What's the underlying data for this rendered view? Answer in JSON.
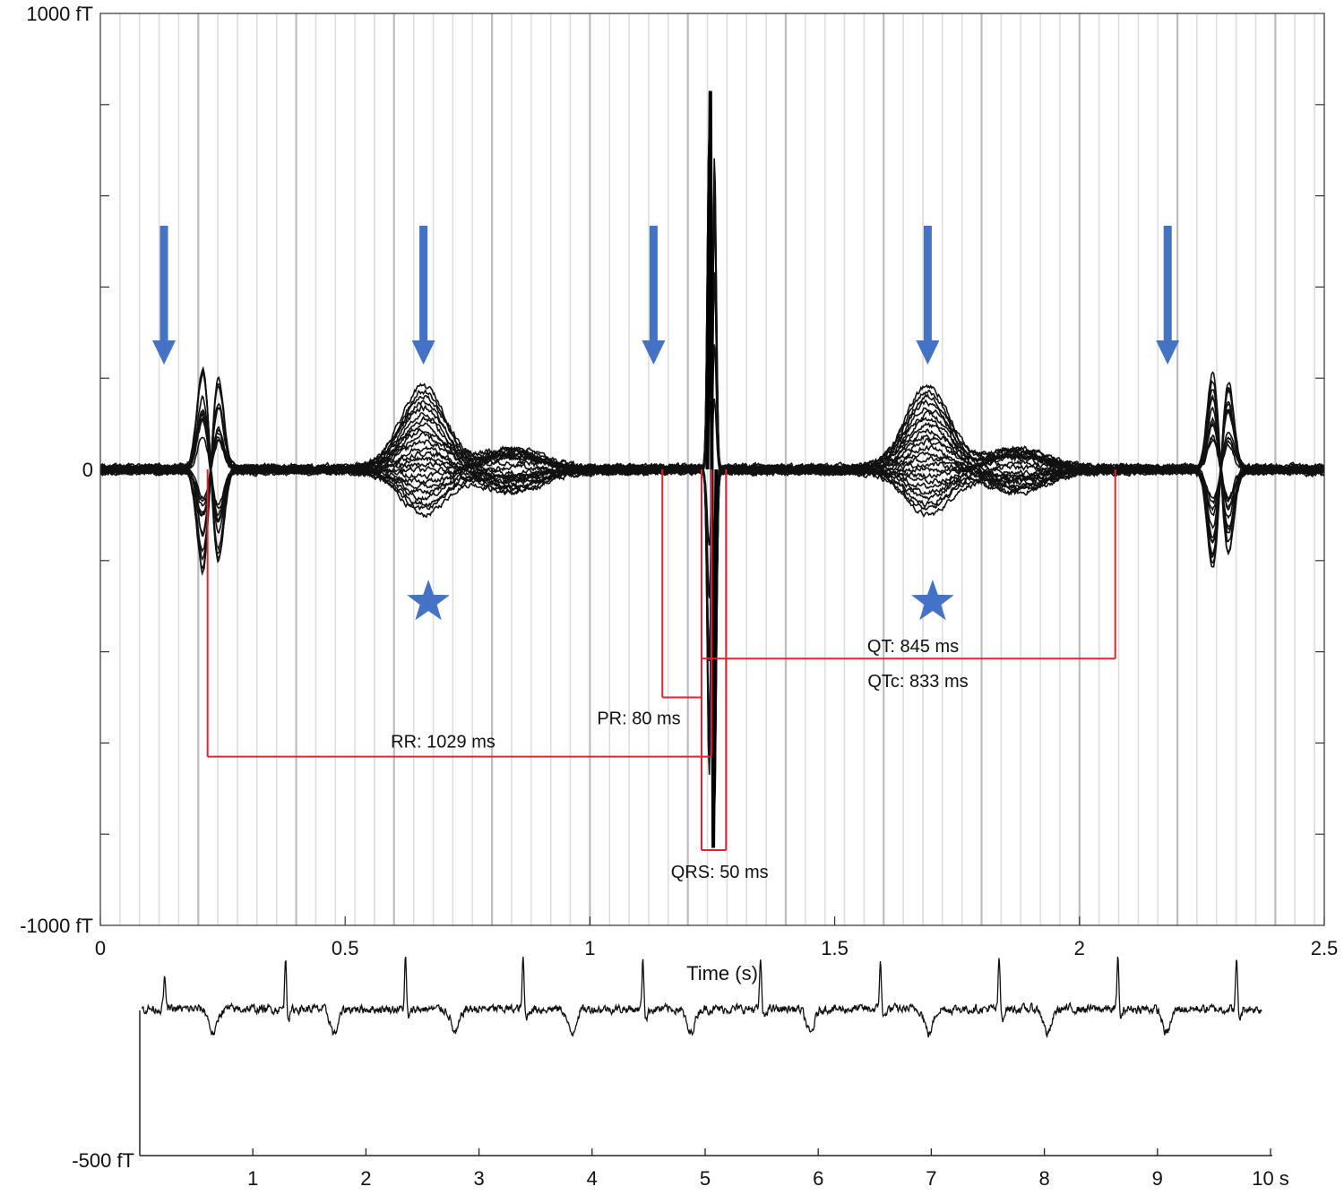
{
  "chart_data": [
    {
      "type": "line",
      "subject": "averaged-multichannel-overlay",
      "xlabel": "Time (s)",
      "x_range": [
        0,
        2.5
      ],
      "x_ticks": [
        {
          "value": 0,
          "label": "0"
        },
        {
          "value": 0.5,
          "label": "0.5"
        },
        {
          "value": 1,
          "label": "1"
        },
        {
          "value": 1.5,
          "label": "1.5"
        },
        {
          "value": 2,
          "label": "2"
        },
        {
          "value": 2.5,
          "label": "2.5"
        }
      ],
      "y_range": [
        -1000,
        1000
      ],
      "y_unit": "fT",
      "y_ticks": [
        {
          "value": 1000,
          "label": "1000 fT"
        },
        {
          "value": 0,
          "label": "0"
        },
        {
          "value": -1000,
          "label": "-1000 fT"
        }
      ],
      "y_minor_ticks": [
        800,
        600,
        400,
        200,
        -200,
        -400,
        -600,
        -800
      ],
      "grid": "vertical",
      "channel_count": 24,
      "r_peak": {
        "time": 1.248,
        "max": 830,
        "min": -830
      },
      "ectopic_complexes": [
        {
          "time": 0.222,
          "amplitude": 240
        },
        {
          "time": 2.285,
          "amplitude": 230
        }
      ],
      "t_waves": [
        {
          "time": 0.66,
          "max": 175,
          "min": -195
        },
        {
          "time": 1.69,
          "max": 185,
          "min": -210
        }
      ],
      "arrows": [
        0.13,
        0.66,
        1.13,
        1.69,
        2.18
      ],
      "arrow_color": "#4472c4",
      "stars": [
        0.67,
        1.7
      ],
      "star_color": "#4472c4",
      "intervals": [
        {
          "label": "RR: 1029 ms",
          "start": 0.219,
          "end": 1.248,
          "level": -630
        },
        {
          "label": "PR: 80 ms",
          "start": 1.148,
          "end": 1.228,
          "level": -500
        },
        {
          "label": "QT: 845 ms",
          "start": 1.228,
          "end": 2.073,
          "level": -415
        },
        {
          "label": "QTc: 833 ms"
        },
        {
          "label": "QRS: 50 ms",
          "start": 1.228,
          "end": 1.278,
          "level": -835
        }
      ],
      "annotation_color": "#e0242b"
    },
    {
      "type": "line",
      "subject": "single-channel-10s-trace",
      "x_range": [
        0,
        10
      ],
      "x_ticks": [
        {
          "value": 1,
          "label": "1"
        },
        {
          "value": 2,
          "label": "2"
        },
        {
          "value": 3,
          "label": "3"
        },
        {
          "value": 4,
          "label": "4"
        },
        {
          "value": 5,
          "label": "5"
        },
        {
          "value": 6,
          "label": "6"
        },
        {
          "value": 7,
          "label": "7"
        },
        {
          "value": 8,
          "label": "8"
        },
        {
          "value": 9,
          "label": "9"
        },
        {
          "value": 10,
          "label": "10 s"
        }
      ],
      "y_range": [
        -500,
        500
      ],
      "y_ticks": [
        {
          "value": -500,
          "label": "-500 fT"
        }
      ],
      "beats": [
        {
          "time": 0.22,
          "kind": "ectopic"
        },
        {
          "time": 0.65,
          "kind": "t"
        },
        {
          "time": 1.29,
          "kind": "r"
        },
        {
          "time": 1.72,
          "kind": "t"
        },
        {
          "time": 2.35,
          "kind": "r"
        },
        {
          "time": 2.79,
          "kind": "t"
        },
        {
          "time": 3.39,
          "kind": "r"
        },
        {
          "time": 3.82,
          "kind": "t"
        },
        {
          "time": 4.45,
          "kind": "r"
        },
        {
          "time": 4.87,
          "kind": "t"
        },
        {
          "time": 5.49,
          "kind": "r"
        },
        {
          "time": 5.93,
          "kind": "t"
        },
        {
          "time": 6.55,
          "kind": "r"
        },
        {
          "time": 6.98,
          "kind": "t"
        },
        {
          "time": 7.6,
          "kind": "r"
        },
        {
          "time": 8.03,
          "kind": "t"
        },
        {
          "time": 8.65,
          "kind": "r"
        },
        {
          "time": 9.08,
          "kind": "t"
        },
        {
          "time": 9.7,
          "kind": "r"
        }
      ]
    }
  ]
}
